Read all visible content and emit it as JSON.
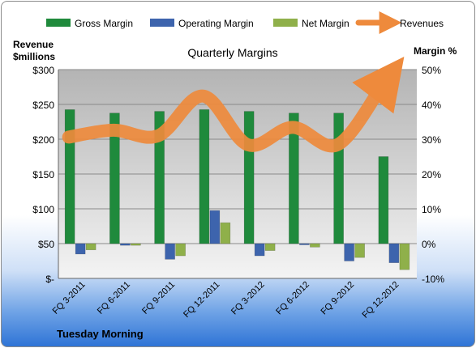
{
  "chart_data": {
    "type": "bar",
    "title": "Quarterly Margins",
    "y_left_label": [
      "Revenue",
      "$millions"
    ],
    "y_right_label": "Margin %",
    "footer": "Tuesday Morning",
    "categories": [
      "FQ 3-2011",
      "FQ 6-2011",
      "FQ 9-2011",
      "FQ 12-2011",
      "FQ 3-2012",
      "FQ 6-2012",
      "FQ 9-2012",
      "FQ 12-2012"
    ],
    "y_left_ticks": [
      "$-",
      "$50",
      "$100",
      "$150",
      "$200",
      "$250",
      "$300"
    ],
    "y_left_range": [
      0,
      300
    ],
    "y_right_ticks": [
      "-10%",
      "0%",
      "10%",
      "20%",
      "30%",
      "40%",
      "50%"
    ],
    "y_right_range": [
      -10,
      50
    ],
    "legend_position": "top",
    "grid": true,
    "series": [
      {
        "name": "Gross Margin",
        "axis": "right",
        "kind": "bar",
        "color": "#1f8a3c",
        "values": [
          38.5,
          37.5,
          38.0,
          38.5,
          38.0,
          37.5,
          37.5,
          25.0
        ]
      },
      {
        "name": "Operating Margin",
        "axis": "right",
        "kind": "bar",
        "color": "#3d64ad",
        "values": [
          -3.0,
          -0.5,
          -4.5,
          9.5,
          -3.5,
          -0.3,
          -5.0,
          -5.5
        ]
      },
      {
        "name": "Net Margin",
        "axis": "right",
        "kind": "bar",
        "color": "#8fb04a",
        "values": [
          -1.8,
          -0.5,
          -3.5,
          6.0,
          -2.0,
          -1.0,
          -4.0,
          -7.5
        ]
      },
      {
        "name": "Revenues",
        "axis": "left",
        "kind": "line",
        "color": "#ee8a3c",
        "values": [
          203,
          213,
          205,
          262,
          192,
          217,
          192,
          277
        ]
      }
    ]
  }
}
